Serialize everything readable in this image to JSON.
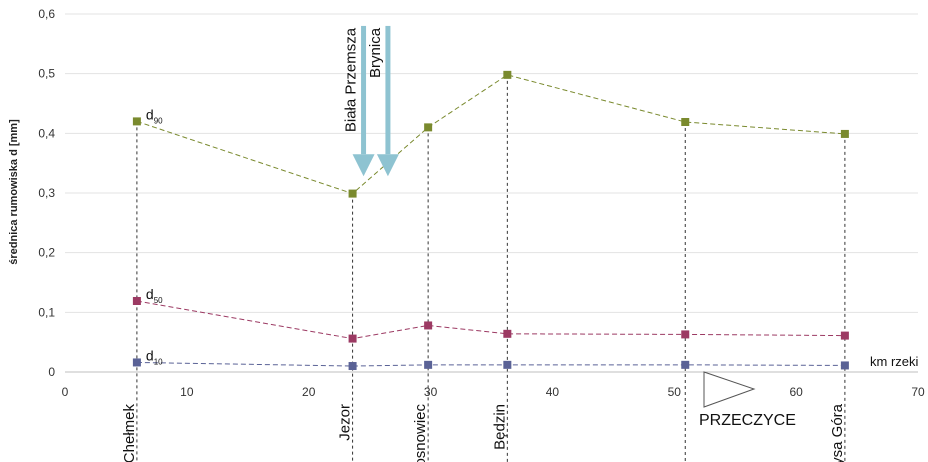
{
  "chart_data": {
    "type": "line",
    "ylabel": "średnica rumowiska d [mm]",
    "xlabel": "km rzeki",
    "xlim": [
      0,
      70
    ],
    "ylim": [
      0,
      0.6
    ],
    "x_ticks": [
      0,
      10,
      20,
      30,
      40,
      50,
      60,
      70
    ],
    "y_ticks": [
      0,
      0.1,
      0.2,
      0.3,
      0.4,
      0.5,
      0.6
    ],
    "y_tick_labels": [
      "0",
      "0,1",
      "0,2",
      "0,3",
      "0,4",
      "0,5",
      "0,6"
    ],
    "grid": "horizontal",
    "series": [
      {
        "name": "d",
        "subscript": "90",
        "color": "#7a8a2e",
        "points": [
          [
            5.9,
            0.42
          ],
          [
            23.6,
            0.299
          ],
          [
            29.8,
            0.41
          ],
          [
            36.3,
            0.498
          ],
          [
            50.9,
            0.419
          ],
          [
            64.0,
            0.399
          ]
        ]
      },
      {
        "name": "d",
        "subscript": "50",
        "color": "#9c3a63",
        "points": [
          [
            5.9,
            0.119
          ],
          [
            23.6,
            0.056
          ],
          [
            29.8,
            0.078
          ],
          [
            36.3,
            0.064
          ],
          [
            50.9,
            0.063
          ],
          [
            64.0,
            0.061
          ]
        ]
      },
      {
        "name": "d",
        "subscript": "10",
        "color": "#5a6296",
        "points": [
          [
            5.9,
            0.016
          ],
          [
            23.6,
            0.01
          ],
          [
            29.8,
            0.012
          ],
          [
            36.3,
            0.012
          ],
          [
            50.9,
            0.012
          ],
          [
            64.0,
            0.011
          ]
        ]
      }
    ],
    "locations": [
      {
        "name": "Chełmek",
        "x": 5.9
      },
      {
        "name": "Jezor",
        "x": 23.6
      },
      {
        "name": "Sosnowiec",
        "x": 29.8
      },
      {
        "name": "Będzin",
        "x": 36.3
      },
      {
        "name": "",
        "x": 50.9
      },
      {
        "name": "Łysa Góra",
        "x": 64.0
      }
    ],
    "tributaries": [
      {
        "name": "Biała Przemsza",
        "x": 24.5,
        "y_top": 0.58,
        "y_bottom": 0.365
      },
      {
        "name": "Brynica",
        "x": 26.5,
        "y_top": 0.58,
        "y_bottom": 0.365
      }
    ],
    "reservoir": {
      "name": "PRZECZYCE"
    }
  }
}
